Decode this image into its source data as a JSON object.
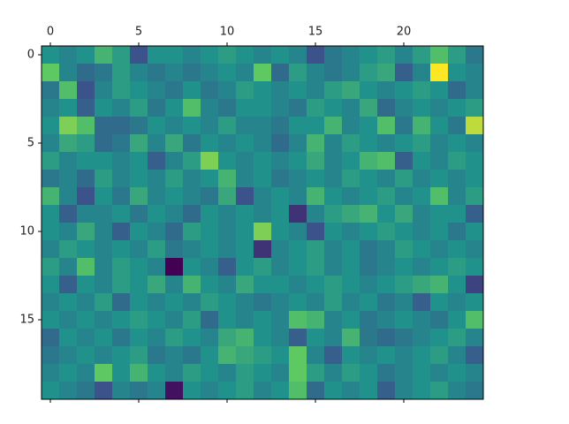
{
  "chart_data": {
    "type": "heatmap",
    "colormap": "viridis",
    "xlim": [
      -0.5,
      24.5
    ],
    "ylim": [
      19.5,
      -0.5
    ],
    "xticks": [
      0,
      5,
      10,
      15,
      20
    ],
    "yticks": [
      0,
      5,
      10,
      15
    ],
    "z": [
      [
        0.5,
        0.45,
        0.5,
        0.65,
        0.55,
        0.25,
        0.5,
        0.5,
        0.45,
        0.5,
        0.55,
        0.5,
        0.45,
        0.5,
        0.45,
        0.25,
        0.4,
        0.45,
        0.5,
        0.55,
        0.45,
        0.55,
        0.7,
        0.55,
        0.4
      ],
      [
        0.75,
        0.45,
        0.35,
        0.4,
        0.55,
        0.45,
        0.4,
        0.45,
        0.4,
        0.45,
        0.5,
        0.45,
        0.75,
        0.35,
        0.55,
        0.45,
        0.4,
        0.45,
        0.55,
        0.6,
        0.3,
        0.45,
        1.0,
        0.5,
        0.45
      ],
      [
        0.4,
        0.7,
        0.25,
        0.45,
        0.55,
        0.5,
        0.45,
        0.4,
        0.5,
        0.4,
        0.45,
        0.55,
        0.5,
        0.45,
        0.5,
        0.45,
        0.55,
        0.6,
        0.5,
        0.45,
        0.5,
        0.55,
        0.5,
        0.35,
        0.45
      ],
      [
        0.45,
        0.5,
        0.3,
        0.5,
        0.45,
        0.55,
        0.4,
        0.5,
        0.7,
        0.45,
        0.4,
        0.5,
        0.5,
        0.45,
        0.4,
        0.55,
        0.5,
        0.45,
        0.6,
        0.35,
        0.45,
        0.5,
        0.45,
        0.5,
        0.55
      ],
      [
        0.5,
        0.8,
        0.7,
        0.35,
        0.35,
        0.4,
        0.5,
        0.45,
        0.5,
        0.45,
        0.55,
        0.45,
        0.45,
        0.4,
        0.5,
        0.5,
        0.65,
        0.45,
        0.5,
        0.7,
        0.4,
        0.65,
        0.5,
        0.4,
        0.9
      ],
      [
        0.45,
        0.6,
        0.55,
        0.35,
        0.4,
        0.6,
        0.45,
        0.6,
        0.4,
        0.5,
        0.45,
        0.5,
        0.45,
        0.35,
        0.45,
        0.65,
        0.45,
        0.55,
        0.5,
        0.45,
        0.5,
        0.55,
        0.45,
        0.5,
        0.45
      ],
      [
        0.55,
        0.45,
        0.5,
        0.5,
        0.45,
        0.5,
        0.3,
        0.45,
        0.55,
        0.8,
        0.5,
        0.45,
        0.5,
        0.45,
        0.5,
        0.6,
        0.45,
        0.5,
        0.65,
        0.7,
        0.3,
        0.5,
        0.45,
        0.55,
        0.5
      ],
      [
        0.4,
        0.45,
        0.35,
        0.55,
        0.45,
        0.5,
        0.45,
        0.55,
        0.45,
        0.5,
        0.65,
        0.45,
        0.5,
        0.4,
        0.45,
        0.5,
        0.45,
        0.55,
        0.5,
        0.45,
        0.55,
        0.45,
        0.5,
        0.45,
        0.5
      ],
      [
        0.65,
        0.45,
        0.25,
        0.5,
        0.4,
        0.6,
        0.45,
        0.5,
        0.45,
        0.4,
        0.6,
        0.25,
        0.45,
        0.5,
        0.45,
        0.65,
        0.5,
        0.45,
        0.5,
        0.55,
        0.45,
        0.5,
        0.7,
        0.45,
        0.55
      ],
      [
        0.5,
        0.3,
        0.45,
        0.45,
        0.5,
        0.4,
        0.5,
        0.45,
        0.35,
        0.5,
        0.45,
        0.5,
        0.45,
        0.5,
        0.15,
        0.45,
        0.55,
        0.6,
        0.65,
        0.5,
        0.6,
        0.45,
        0.5,
        0.5,
        0.3
      ],
      [
        0.5,
        0.45,
        0.6,
        0.45,
        0.3,
        0.5,
        0.45,
        0.35,
        0.55,
        0.5,
        0.45,
        0.5,
        0.8,
        0.5,
        0.45,
        0.25,
        0.5,
        0.45,
        0.5,
        0.55,
        0.5,
        0.45,
        0.5,
        0.4,
        0.5
      ],
      [
        0.45,
        0.55,
        0.5,
        0.45,
        0.5,
        0.45,
        0.55,
        0.4,
        0.45,
        0.5,
        0.45,
        0.5,
        0.15,
        0.45,
        0.5,
        0.55,
        0.45,
        0.5,
        0.4,
        0.45,
        0.55,
        0.5,
        0.45,
        0.5,
        0.45
      ],
      [
        0.55,
        0.45,
        0.7,
        0.45,
        0.55,
        0.5,
        0.45,
        0.0,
        0.5,
        0.45,
        0.3,
        0.5,
        0.55,
        0.45,
        0.5,
        0.55,
        0.45,
        0.5,
        0.4,
        0.45,
        0.5,
        0.45,
        0.5,
        0.55,
        0.5
      ],
      [
        0.5,
        0.3,
        0.5,
        0.45,
        0.55,
        0.5,
        0.6,
        0.45,
        0.65,
        0.5,
        0.45,
        0.6,
        0.5,
        0.5,
        0.45,
        0.5,
        0.55,
        0.5,
        0.45,
        0.5,
        0.55,
        0.6,
        0.65,
        0.5,
        0.2
      ],
      [
        0.45,
        0.5,
        0.45,
        0.55,
        0.35,
        0.5,
        0.45,
        0.5,
        0.45,
        0.55,
        0.5,
        0.45,
        0.4,
        0.45,
        0.5,
        0.45,
        0.55,
        0.45,
        0.5,
        0.4,
        0.45,
        0.3,
        0.5,
        0.45,
        0.5
      ],
      [
        0.5,
        0.45,
        0.5,
        0.45,
        0.5,
        0.55,
        0.5,
        0.45,
        0.55,
        0.35,
        0.5,
        0.45,
        0.5,
        0.45,
        0.7,
        0.65,
        0.45,
        0.5,
        0.4,
        0.45,
        0.5,
        0.45,
        0.4,
        0.5,
        0.7
      ],
      [
        0.35,
        0.5,
        0.45,
        0.5,
        0.4,
        0.5,
        0.45,
        0.55,
        0.5,
        0.45,
        0.6,
        0.65,
        0.5,
        0.45,
        0.3,
        0.5,
        0.45,
        0.65,
        0.4,
        0.35,
        0.4,
        0.45,
        0.5,
        0.55,
        0.45
      ],
      [
        0.4,
        0.45,
        0.5,
        0.45,
        0.5,
        0.55,
        0.4,
        0.45,
        0.4,
        0.5,
        0.65,
        0.6,
        0.55,
        0.5,
        0.75,
        0.45,
        0.3,
        0.5,
        0.45,
        0.5,
        0.45,
        0.5,
        0.55,
        0.45,
        0.3
      ],
      [
        0.45,
        0.5,
        0.45,
        0.75,
        0.5,
        0.65,
        0.5,
        0.45,
        0.55,
        0.5,
        0.45,
        0.55,
        0.5,
        0.45,
        0.75,
        0.55,
        0.45,
        0.55,
        0.5,
        0.4,
        0.45,
        0.5,
        0.45,
        0.5,
        0.45
      ],
      [
        0.5,
        0.45,
        0.4,
        0.25,
        0.45,
        0.4,
        0.45,
        0.05,
        0.5,
        0.45,
        0.5,
        0.55,
        0.45,
        0.5,
        0.7,
        0.35,
        0.5,
        0.45,
        0.5,
        0.3,
        0.45,
        0.5,
        0.55,
        0.45,
        0.4
      ]
    ]
  }
}
